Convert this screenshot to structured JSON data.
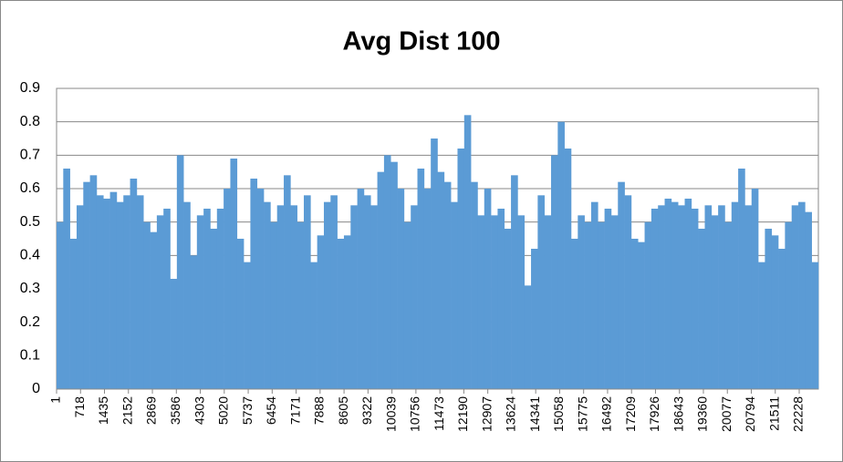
{
  "chart_data": {
    "type": "bar",
    "title": "Avg Dist 100",
    "color": "#5b9bd5",
    "grid": true,
    "x": [
      1,
      201,
      401,
      601,
      801,
      1001,
      1201,
      1401,
      1601,
      1801,
      2001,
      2201,
      2401,
      2601,
      2801,
      3001,
      3201,
      3401,
      3601,
      3801,
      4001,
      4201,
      4401,
      4601,
      4801,
      5001,
      5201,
      5401,
      5601,
      5801,
      6001,
      6201,
      6401,
      6601,
      6801,
      7001,
      7201,
      7401,
      7601,
      7801,
      8001,
      8201,
      8401,
      8601,
      8801,
      9001,
      9201,
      9401,
      9601,
      9801,
      10001,
      10201,
      10401,
      10601,
      10801,
      11001,
      11201,
      11401,
      11601,
      11801,
      12001,
      12201,
      12401,
      12601,
      12801,
      13001,
      13201,
      13401,
      13601,
      13801,
      14001,
      14201,
      14401,
      14601,
      14801,
      15001,
      15201,
      15401,
      15601,
      15801,
      16001,
      16201,
      16401,
      16601,
      16801,
      17001,
      17201,
      17401,
      17601,
      17801,
      18001,
      18201,
      18401,
      18601,
      18801,
      19001,
      19201,
      19401,
      19601,
      19801,
      20001,
      20201,
      20401,
      20601,
      20801,
      21001,
      21201,
      21401,
      21601,
      21801,
      22001,
      22201,
      22401,
      22601
    ],
    "values": [
      0.5,
      0.66,
      0.45,
      0.55,
      0.62,
      0.64,
      0.58,
      0.57,
      0.59,
      0.56,
      0.58,
      0.63,
      0.58,
      0.5,
      0.47,
      0.52,
      0.54,
      0.33,
      0.7,
      0.56,
      0.4,
      0.52,
      0.54,
      0.48,
      0.54,
      0.6,
      0.69,
      0.45,
      0.38,
      0.63,
      0.6,
      0.56,
      0.5,
      0.55,
      0.64,
      0.55,
      0.5,
      0.58,
      0.38,
      0.46,
      0.56,
      0.58,
      0.45,
      0.46,
      0.55,
      0.6,
      0.58,
      0.55,
      0.65,
      0.7,
      0.68,
      0.6,
      0.5,
      0.55,
      0.66,
      0.6,
      0.75,
      0.65,
      0.62,
      0.56,
      0.72,
      0.82,
      0.62,
      0.52,
      0.6,
      0.52,
      0.54,
      0.48,
      0.64,
      0.52,
      0.31,
      0.42,
      0.58,
      0.52,
      0.7,
      0.8,
      0.72,
      0.45,
      0.52,
      0.5,
      0.56,
      0.5,
      0.54,
      0.52,
      0.62,
      0.58,
      0.45,
      0.44,
      0.5,
      0.54,
      0.55,
      0.57,
      0.56,
      0.55,
      0.57,
      0.54,
      0.48,
      0.55,
      0.52,
      0.55,
      0.5,
      0.56,
      0.66,
      0.55,
      0.6,
      0.38,
      0.48,
      0.46,
      0.42,
      0.5,
      0.55,
      0.56,
      0.53,
      0.38
    ],
    "xlim": [
      1,
      22801
    ],
    "xticks": [
      1,
      718,
      1435,
      2152,
      2869,
      3586,
      4303,
      5020,
      5737,
      6454,
      7171,
      7888,
      8605,
      9322,
      10039,
      10756,
      11473,
      12190,
      12907,
      13624,
      14341,
      15058,
      15775,
      16492,
      17209,
      17926,
      18643,
      19360,
      20077,
      20794,
      21511,
      22228
    ],
    "ylim": [
      0,
      0.9
    ],
    "yticks": [
      0,
      0.1,
      0.2,
      0.3,
      0.4,
      0.5,
      0.6,
      0.7,
      0.8,
      0.9
    ]
  }
}
